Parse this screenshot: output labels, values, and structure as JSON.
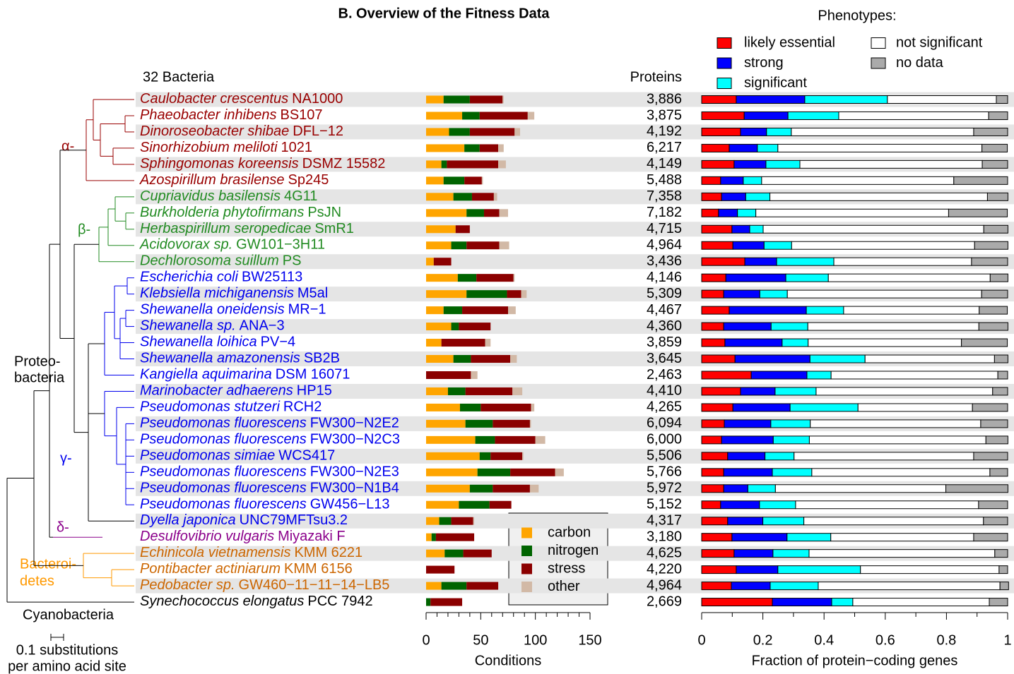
{
  "title": "B. Overview of the Fitness Data",
  "tree": {
    "header": "32 Bacteria",
    "clades": [
      "α-",
      "β-",
      "γ-",
      "δ-"
    ],
    "proteobacteria": [
      "Proteo-",
      "bacteria"
    ],
    "bacteroidetes": [
      "Bacteroi-",
      "detes"
    ],
    "cyanobacteria": "Cyanobacteria",
    "scale": [
      "0.1 substitutions",
      "per amino acid site"
    ]
  },
  "bacteria": [
    {
      "species": "Caulobacter crescentus",
      "strain": "NA1000",
      "color": "#990000"
    },
    {
      "species": "Phaeobacter inhibens",
      "strain": "BS107",
      "color": "#990000"
    },
    {
      "species": "Dinoroseobacter shibae",
      "strain": "DFL−12",
      "color": "#990000"
    },
    {
      "species": "Sinorhizobium meliloti",
      "strain": "1021",
      "color": "#990000"
    },
    {
      "species": "Sphingomonas koreensis",
      "strain": "DSMZ 15582",
      "color": "#990000"
    },
    {
      "species": "Azospirillum brasilense",
      "strain": "Sp245",
      "color": "#990000"
    },
    {
      "species": "Cupriavidus basilensis",
      "strain": "4G11",
      "color": "#228B22"
    },
    {
      "species": "Burkholderia phytofirmans",
      "strain": "PsJN",
      "color": "#228B22"
    },
    {
      "species": "Herbaspirillum seropedicae",
      "strain": "SmR1",
      "color": "#228B22"
    },
    {
      "species": "Acidovorax sp.",
      "strain": "GW101−3H11",
      "color": "#228B22"
    },
    {
      "species": "Dechlorosoma suillum",
      "strain": "PS",
      "color": "#228B22"
    },
    {
      "species": "Escherichia coli",
      "strain": "BW25113",
      "color": "#0000EE"
    },
    {
      "species": "Klebsiella michiganensis",
      "strain": "M5al",
      "color": "#0000EE"
    },
    {
      "species": "Shewanella oneidensis",
      "strain": "MR−1",
      "color": "#0000EE"
    },
    {
      "species": "Shewanella sp.",
      "strain": "ANA−3",
      "color": "#0000EE"
    },
    {
      "species": "Shewanella loihica",
      "strain": "PV−4",
      "color": "#0000EE"
    },
    {
      "species": "Shewanella amazonensis",
      "strain": "SB2B",
      "color": "#0000EE"
    },
    {
      "species": "Kangiella aquimarina",
      "strain": "DSM 16071",
      "color": "#0000EE"
    },
    {
      "species": "Marinobacter adhaerens",
      "strain": "HP15",
      "color": "#0000EE"
    },
    {
      "species": "Pseudomonas stutzeri",
      "strain": "RCH2",
      "color": "#0000EE"
    },
    {
      "species": "Pseudomonas fluorescens",
      "strain": "FW300−N2E2",
      "color": "#0000EE"
    },
    {
      "species": "Pseudomonas fluorescens",
      "strain": "FW300−N2C3",
      "color": "#0000EE"
    },
    {
      "species": "Pseudomonas simiae",
      "strain": "WCS417",
      "color": "#0000EE"
    },
    {
      "species": "Pseudomonas fluorescens",
      "strain": "FW300−N2E3",
      "color": "#0000EE"
    },
    {
      "species": "Pseudomonas fluorescens",
      "strain": "FW300−N1B4",
      "color": "#0000EE"
    },
    {
      "species": "Pseudomonas fluorescens",
      "strain": "GW456−L13",
      "color": "#0000EE"
    },
    {
      "species": "Dyella japonica",
      "strain": "UNC79MFTsu3.2",
      "color": "#0000EE"
    },
    {
      "species": "Desulfovibrio vulgaris",
      "strain": "Miyazaki F",
      "color": "#8B008B"
    },
    {
      "species": "Echinicola vietnamensis",
      "strain": "KMM 6221",
      "color": "#CC6600"
    },
    {
      "species": "Pontibacter actiniarum",
      "strain": "KMM 6156",
      "color": "#CC6600"
    },
    {
      "species": "Pedobacter sp.",
      "strain": "GW460−11−11−14−LB5",
      "color": "#CC6600"
    },
    {
      "species": "Synechococcus elongatus",
      "strain": "PCC 7942",
      "color": "#000000"
    }
  ],
  "proteins": {
    "header": "Proteins",
    "values": [
      "3,886",
      "3,875",
      "4,192",
      "6,217",
      "4,149",
      "5,488",
      "7,358",
      "7,182",
      "4,715",
      "4,964",
      "3,436",
      "4,146",
      "5,309",
      "4,467",
      "4,360",
      "3,859",
      "3,645",
      "2,463",
      "4,410",
      "4,265",
      "6,094",
      "6,000",
      "5,506",
      "5,766",
      "5,972",
      "5,152",
      "4,317",
      "3,180",
      "4,625",
      "4,220",
      "4,964",
      "2,669"
    ]
  },
  "chart_data": [
    {
      "type": "bar",
      "stacked": true,
      "orientation": "horizontal",
      "xlabel": "Conditions",
      "xlim": [
        0,
        150
      ],
      "xticks": [
        0,
        50,
        100,
        150
      ],
      "minor_xticks": [
        10,
        20,
        30,
        40,
        60,
        70,
        80,
        90,
        110,
        120,
        130,
        140
      ],
      "legend": "bottom-right",
      "series": [
        {
          "name": "carbon",
          "color": "#FFA500",
          "values": [
            16,
            33,
            21,
            35,
            14,
            16,
            25,
            37,
            27,
            23,
            7,
            29,
            37,
            16,
            23,
            14,
            25,
            0,
            20,
            31,
            36,
            45,
            49,
            47,
            40,
            30,
            12,
            5,
            17,
            0,
            14,
            0
          ]
        },
        {
          "name": "nitrogen",
          "color": "#006400",
          "values": [
            24,
            16,
            19,
            14,
            5,
            19,
            17,
            16,
            0,
            14,
            0,
            17,
            37,
            17,
            7,
            0,
            16,
            0,
            16,
            19,
            25,
            18,
            10,
            30,
            21,
            28,
            11,
            4,
            17,
            0,
            23,
            4
          ]
        },
        {
          "name": "stress",
          "color": "#8B0000",
          "values": [
            30,
            44,
            41,
            17,
            47,
            16,
            20,
            14,
            13,
            30,
            16,
            34,
            13,
            42,
            29,
            40,
            36,
            41,
            43,
            46,
            34,
            37,
            29,
            41,
            34,
            20,
            20,
            35,
            26,
            26,
            29,
            29
          ]
        },
        {
          "name": "other",
          "color": "#D2B9A6",
          "values": [
            1,
            6,
            5,
            5,
            7,
            1,
            3,
            8,
            0,
            9,
            0,
            1,
            5,
            7,
            0,
            5,
            6,
            6,
            9,
            3,
            1,
            9,
            1,
            8,
            8,
            0,
            1,
            0,
            0,
            0,
            0,
            0
          ]
        }
      ]
    },
    {
      "type": "bar",
      "stacked": true,
      "orientation": "horizontal",
      "legend_title": "Phenotypes:",
      "xlabel": "Fraction of protein−coding genes",
      "xlim": [
        0,
        1
      ],
      "xticks": [
        0,
        0.2,
        0.4,
        0.6,
        0.8,
        1
      ],
      "minor_xticks": [
        0.1,
        0.3,
        0.5,
        0.7,
        0.9
      ],
      "legend": "top",
      "series": [
        {
          "name": "likely essential",
          "color": "#FF0000",
          "values": [
            0.113,
            0.139,
            0.127,
            0.09,
            0.106,
            0.062,
            0.065,
            0.055,
            0.099,
            0.102,
            0.141,
            0.079,
            0.072,
            0.09,
            0.072,
            0.076,
            0.109,
            0.162,
            0.127,
            0.102,
            0.074,
            0.065,
            0.085,
            0.072,
            0.072,
            0.062,
            0.085,
            0.099,
            0.106,
            0.113,
            0.097,
            0.231
          ]
        },
        {
          "name": "strong",
          "color": "#0000FF",
          "values": [
            0.224,
            0.143,
            0.085,
            0.092,
            0.104,
            0.074,
            0.079,
            0.062,
            0.058,
            0.102,
            0.104,
            0.196,
            0.118,
            0.252,
            0.155,
            0.187,
            0.245,
            0.182,
            0.113,
            0.187,
            0.152,
            0.169,
            0.122,
            0.159,
            0.079,
            0.127,
            0.115,
            0.18,
            0.127,
            0.136,
            0.127,
            0.194
          ]
        },
        {
          "name": "significant",
          "color": "#00FFFF",
          "values": [
            0.27,
            0.166,
            0.081,
            0.067,
            0.111,
            0.06,
            0.079,
            0.06,
            0.044,
            0.09,
            0.187,
            0.139,
            0.09,
            0.122,
            0.12,
            0.085,
            0.18,
            0.079,
            0.134,
            0.222,
            0.129,
            0.118,
            0.095,
            0.129,
            0.09,
            0.118,
            0.134,
            0.143,
            0.118,
            0.27,
            0.157,
            0.069
          ]
        },
        {
          "name": "not significant",
          "color": "#FFFFFF",
          "values": [
            0.356,
            0.49,
            0.596,
            0.667,
            0.596,
            0.628,
            0.711,
            0.63,
            0.721,
            0.598,
            0.45,
            0.529,
            0.635,
            0.443,
            0.559,
            0.501,
            0.423,
            0.545,
            0.577,
            0.374,
            0.557,
            0.577,
            0.587,
            0.582,
            0.557,
            0.598,
            0.587,
            0.467,
            0.607,
            0.453,
            0.594,
            0.446
          ]
        },
        {
          "name": "no data",
          "color": "#AAAAAA",
          "values": [
            0.037,
            0.062,
            0.111,
            0.083,
            0.083,
            0.176,
            0.067,
            0.192,
            0.079,
            0.109,
            0.118,
            0.058,
            0.085,
            0.092,
            0.095,
            0.15,
            0.044,
            0.032,
            0.049,
            0.115,
            0.088,
            0.072,
            0.111,
            0.058,
            0.203,
            0.095,
            0.079,
            0.111,
            0.042,
            0.028,
            0.028,
            0.06
          ]
        }
      ]
    }
  ]
}
